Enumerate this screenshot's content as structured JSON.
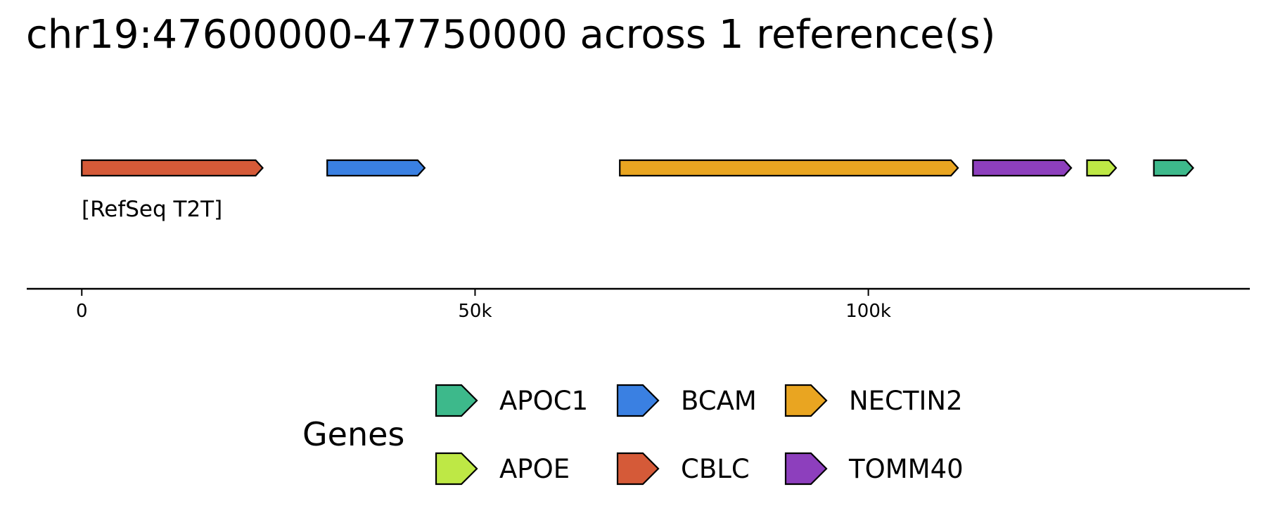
{
  "chart_data": {
    "type": "gene-track",
    "title": "chr19:47600000-47750000 across 1 reference(s)",
    "track_label": "[RefSeq T2T]",
    "xlim": [
      -7000,
      148500
    ],
    "ticks": [
      {
        "value": 0,
        "label": "0"
      },
      {
        "value": 50000,
        "label": "50k"
      },
      {
        "value": 100000,
        "label": "100k"
      }
    ],
    "genes": [
      {
        "name": "CBLC",
        "start": 0,
        "end": 23000,
        "strand": "+"
      },
      {
        "name": "BCAM",
        "start": 31200,
        "end": 43600,
        "strand": "+"
      },
      {
        "name": "NECTIN2",
        "start": 68400,
        "end": 111400,
        "strand": "+"
      },
      {
        "name": "TOMM40",
        "start": 113300,
        "end": 125800,
        "strand": "+"
      },
      {
        "name": "APOE",
        "start": 127800,
        "end": 131500,
        "strand": "+"
      },
      {
        "name": "APOC1",
        "start": 136300,
        "end": 141300,
        "strand": "+"
      }
    ],
    "legend": {
      "title": "Genes",
      "entries": [
        "APOC1",
        "APOE",
        "BCAM",
        "CBLC",
        "NECTIN2",
        "TOMM40"
      ]
    },
    "colors": {
      "APOC1": "#3DB98B",
      "APOE": "#BEE845",
      "BCAM": "#3A80E2",
      "CBLC": "#D55A38",
      "NECTIN2": "#E9A521",
      "TOMM40": "#8D3FBD"
    }
  }
}
